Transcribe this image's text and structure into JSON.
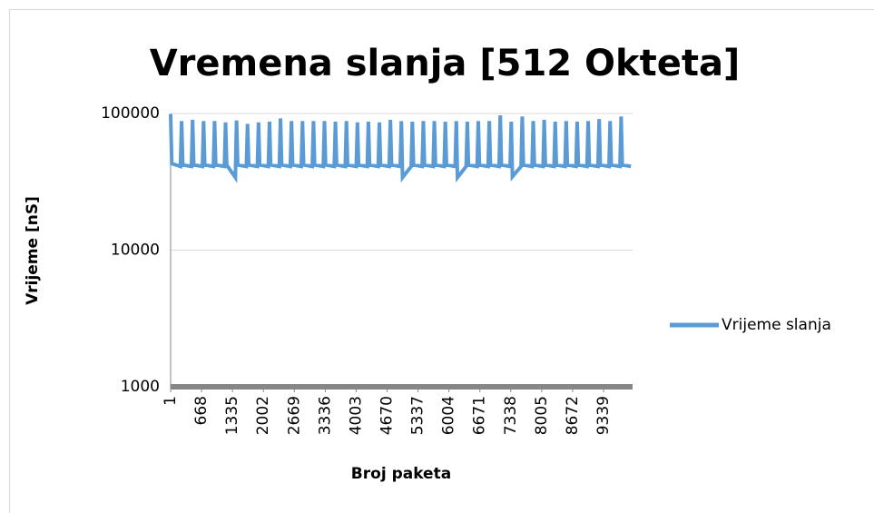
{
  "chart_data": {
    "type": "line",
    "title": "Vremena slanja [512 Okteta]",
    "x_label": "Broj paketa",
    "y_label": "Vrijeme [nS]",
    "yscale": "log",
    "grid": true,
    "legend": "right",
    "xlim": [
      1,
      9965
    ],
    "xticks": [
      1,
      668,
      1335,
      2002,
      2669,
      3336,
      4003,
      4670,
      5337,
      6004,
      6671,
      7338,
      8005,
      8672,
      9339
    ],
    "ylim": [
      1000,
      100000
    ],
    "yticks": [
      1000,
      10000,
      100000
    ],
    "series": [
      {
        "name": "Vrijeme slanja",
        "color": "#5b9bd5",
        "x": [
          1,
          26,
          213,
          238,
          263,
          450,
          475,
          500,
          687,
          712,
          737,
          924,
          949,
          974,
          1161,
          1186,
          1211,
          1398,
          1423,
          1448,
          1635,
          1660,
          1685,
          1872,
          1897,
          1922,
          2109,
          2134,
          2159,
          2346,
          2371,
          2396,
          2583,
          2608,
          2633,
          2820,
          2845,
          2870,
          3057,
          3082,
          3107,
          3294,
          3319,
          3344,
          3531,
          3556,
          3581,
          3768,
          3793,
          3818,
          4005,
          4030,
          4055,
          4242,
          4267,
          4292,
          4479,
          4504,
          4529,
          4716,
          4741,
          4766,
          4953,
          4978,
          5003,
          5190,
          5215,
          5240,
          5427,
          5452,
          5477,
          5664,
          5689,
          5714,
          5901,
          5926,
          5951,
          6138,
          6163,
          6188,
          6375,
          6400,
          6425,
          6612,
          6637,
          6662,
          6849,
          6874,
          6899,
          7086,
          7111,
          7136,
          7323,
          7348,
          7373,
          7560,
          7585,
          7610,
          7797,
          7822,
          7847,
          8034,
          8059,
          8084,
          8271,
          8296,
          8321,
          8508,
          8533,
          8558,
          8745,
          8770,
          8795,
          8982,
          9007,
          9032,
          9219,
          9244,
          9269,
          9456,
          9481,
          9506,
          9693,
          9718,
          9743,
          9930
        ],
        "values": [
          99000,
          43000,
          41000,
          88000,
          42000,
          41000,
          90000,
          42000,
          41000,
          88000,
          42000,
          41000,
          88000,
          42000,
          41000,
          86000,
          42000,
          34000,
          89000,
          42000,
          41000,
          84000,
          42000,
          41000,
          86000,
          42000,
          41000,
          87000,
          42000,
          41000,
          92000,
          42000,
          41000,
          88000,
          42000,
          41000,
          88000,
          42000,
          41000,
          88000,
          42000,
          41000,
          88000,
          42000,
          41000,
          87000,
          42000,
          41000,
          88000,
          42000,
          41000,
          86000,
          42000,
          41000,
          87000,
          42000,
          41000,
          86000,
          42000,
          41000,
          90000,
          42000,
          41000,
          88000,
          34000,
          41000,
          87000,
          42000,
          41000,
          88000,
          42000,
          41000,
          88000,
          42000,
          41000,
          87000,
          42000,
          41000,
          88000,
          34000,
          41000,
          87000,
          42000,
          41000,
          88000,
          42000,
          41000,
          88000,
          42000,
          41000,
          97000,
          42000,
          41000,
          87000,
          34500,
          41000,
          95000,
          42000,
          41000,
          88000,
          42000,
          41000,
          90000,
          42000,
          41000,
          87000,
          42000,
          41000,
          88000,
          42000,
          41000,
          87000,
          42000,
          41000,
          88000,
          42000,
          41000,
          91000,
          42000,
          41000,
          88000,
          42000,
          41000,
          95000,
          42000,
          41000
        ]
      }
    ]
  }
}
